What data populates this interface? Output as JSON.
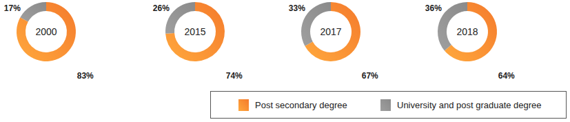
{
  "chart_data": [
    {
      "type": "pie",
      "title": "2000",
      "categories": [
        "Post secondary degree",
        "University and post graduate degree"
      ],
      "values": [
        83,
        17
      ],
      "value_labels": [
        "83%",
        "17%"
      ],
      "colors": [
        "#f47a2c",
        "#8a8a8a"
      ],
      "data_labels": true,
      "legend": "bottom"
    },
    {
      "type": "pie",
      "title": "2015",
      "categories": [
        "Post secondary degree",
        "University and post graduate degree"
      ],
      "values": [
        74,
        26
      ],
      "value_labels": [
        "74%",
        "26%"
      ],
      "colors": [
        "#f47a2c",
        "#8a8a8a"
      ],
      "data_labels": true,
      "legend": "bottom"
    },
    {
      "type": "pie",
      "title": "2017",
      "categories": [
        "Post secondary degree",
        "University and post graduate degree"
      ],
      "values": [
        67,
        33
      ],
      "value_labels": [
        "67%",
        "33%"
      ],
      "colors": [
        "#f47a2c",
        "#8a8a8a"
      ],
      "data_labels": true,
      "legend": "bottom"
    },
    {
      "type": "pie",
      "title": "2018",
      "categories": [
        "Post secondary degree",
        "University and post graduate degree"
      ],
      "values": [
        64,
        36
      ],
      "value_labels": [
        "64%",
        "36%"
      ],
      "colors": [
        "#f47a2c",
        "#8a8a8a"
      ],
      "data_labels": true,
      "legend": "bottom"
    }
  ]
}
